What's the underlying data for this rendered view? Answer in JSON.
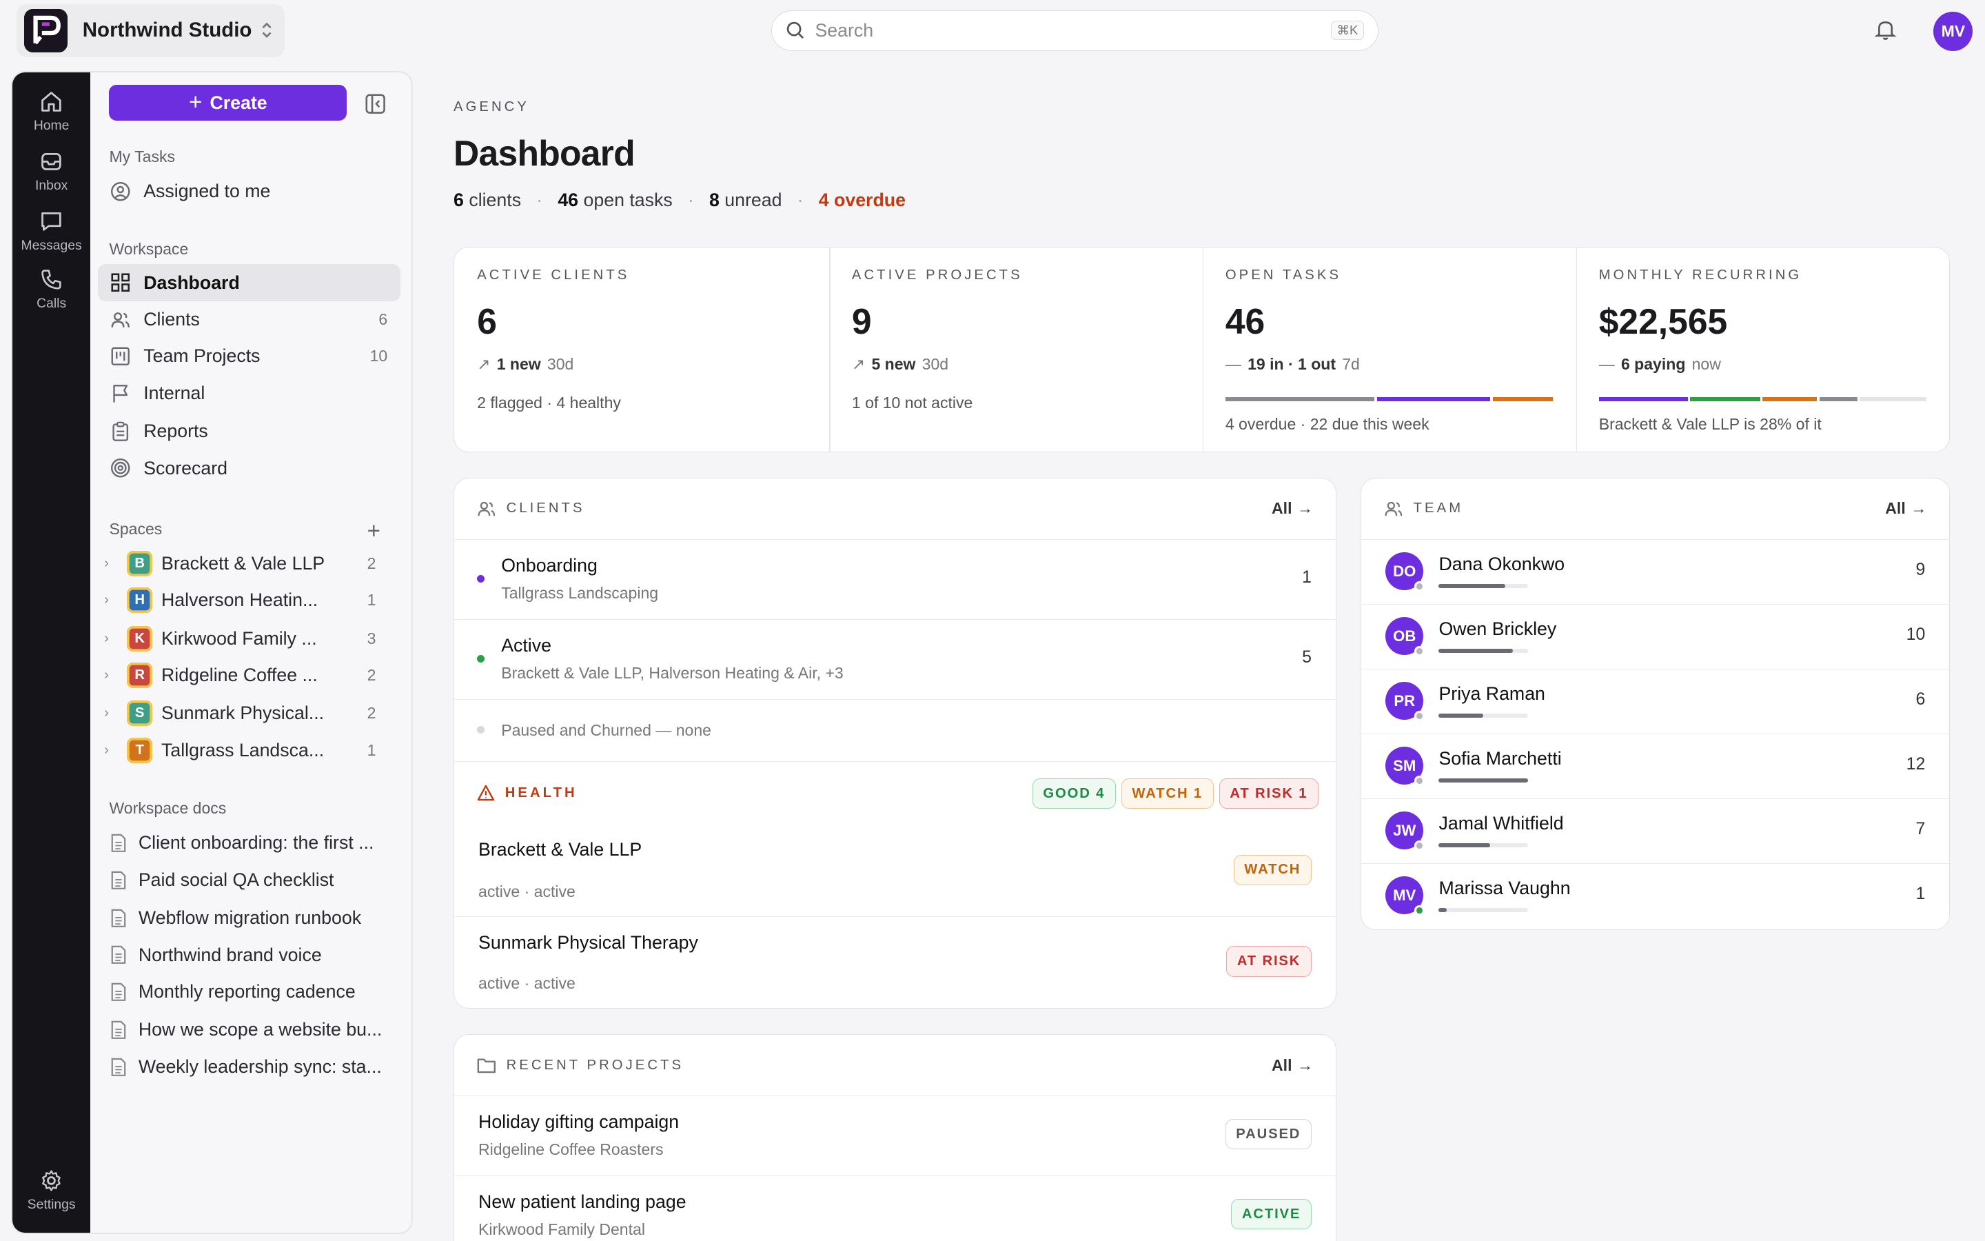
{
  "workspace": {
    "name": "Northwind Studio"
  },
  "search": {
    "placeholder": "Search",
    "shortcut": "⌘K"
  },
  "user": {
    "initials": "MV"
  },
  "rail": {
    "home": "Home",
    "inbox": "Inbox",
    "messages": "Messages",
    "calls": "Calls",
    "settings": "Settings"
  },
  "sidebar": {
    "create_label": "Create",
    "my_tasks_label": "My Tasks",
    "assigned": "Assigned to me",
    "workspace_label": "Workspace",
    "nav": [
      {
        "label": "Dashboard",
        "count": ""
      },
      {
        "label": "Clients",
        "count": "6"
      },
      {
        "label": "Team Projects",
        "count": "10"
      },
      {
        "label": "Internal",
        "count": ""
      },
      {
        "label": "Reports",
        "count": ""
      },
      {
        "label": "Scorecard",
        "count": ""
      }
    ],
    "spaces_label": "Spaces",
    "spaces": [
      {
        "letter": "B",
        "name": "Brackett & Vale LLP",
        "count": "2",
        "color": "#3f9e86"
      },
      {
        "letter": "H",
        "name": "Halverson Heatin...",
        "count": "1",
        "color": "#2f6fb2"
      },
      {
        "letter": "K",
        "name": "Kirkwood Family ...",
        "count": "3",
        "color": "#c9473e"
      },
      {
        "letter": "R",
        "name": "Ridgeline Coffee ...",
        "count": "2",
        "color": "#c9473e"
      },
      {
        "letter": "S",
        "name": "Sunmark Physical...",
        "count": "2",
        "color": "#3f9e86"
      },
      {
        "letter": "T",
        "name": "Tallgrass Landsca...",
        "count": "1",
        "color": "#d1731a"
      }
    ],
    "docs_label": "Workspace docs",
    "docs": [
      "Client onboarding: the first ...",
      "Paid social QA checklist",
      "Webflow migration runbook",
      "Northwind brand voice",
      "Monthly reporting cadence",
      "How we scope a website bu...",
      "Weekly leadership sync: sta..."
    ]
  },
  "page": {
    "eyebrow": "AGENCY",
    "title": "Dashboard",
    "summary": {
      "clients_n": "6",
      "clients_t": "clients",
      "tasks_n": "46",
      "tasks_t": "open tasks",
      "unread_n": "8",
      "unread_t": "unread",
      "overdue": "4 overdue"
    }
  },
  "kpis": [
    {
      "label": "ACTIVE CLIENTS",
      "value": "6",
      "delta_b": "1 new",
      "delta_t": "30d",
      "foot": "2 flagged · 4 healthy"
    },
    {
      "label": "ACTIVE PROJECTS",
      "value": "9",
      "delta_b": "5 new",
      "delta_t": "30d",
      "foot": "1 of 10 not active"
    },
    {
      "label": "OPEN TASKS",
      "value": "46",
      "delta_b": "19 in · 1 out",
      "delta_t": "7d",
      "foot": "4 overdue · 22 due this week"
    },
    {
      "label": "MONTHLY RECURRING",
      "value": "$22,565",
      "delta_b": "6 paying",
      "delta_t": "now",
      "foot": "Brackett & Vale LLP is 28% of it"
    }
  ],
  "kpi_colors": {
    "gray": "#8a8a92",
    "purple": "#6d2ee0",
    "orange": "#d9731a",
    "green": "#2f9e44",
    "light": "#e5e4e8"
  },
  "clients_panel": {
    "title": "CLIENTS",
    "all": "All",
    "groups": [
      {
        "name": "Onboarding",
        "sub": "Tallgrass Landscaping",
        "count": "1",
        "color": "#6d2ee0"
      },
      {
        "name": "Active",
        "sub": "Brackett & Vale LLP, Halverson Heating & Air, +3",
        "count": "5",
        "color": "#2f9e44"
      }
    ],
    "paused": "Paused and Churned — none",
    "health_title": "HEALTH",
    "health_badges": {
      "good": "GOOD 4",
      "watch": "WATCH 1",
      "risk": "AT RISK 1"
    },
    "health_rows": [
      {
        "name": "Brackett & Vale LLP",
        "sub": "active · active",
        "badge": "WATCH"
      },
      {
        "name": "Sunmark Physical Therapy",
        "sub": "active · active",
        "badge": "AT RISK"
      }
    ]
  },
  "team_panel": {
    "title": "TEAM",
    "all": "All",
    "members": [
      {
        "initials": "DO",
        "name": "Dana Okonkwo",
        "count": "9",
        "load": 0.75
      },
      {
        "initials": "OB",
        "name": "Owen Brickley",
        "count": "10",
        "load": 0.83
      },
      {
        "initials": "PR",
        "name": "Priya Raman",
        "count": "6",
        "load": 0.5
      },
      {
        "initials": "SM",
        "name": "Sofia Marchetti",
        "count": "12",
        "load": 1.0
      },
      {
        "initials": "JW",
        "name": "Jamal Whitfield",
        "count": "7",
        "load": 0.58
      },
      {
        "initials": "MV",
        "name": "Marissa Vaughn",
        "count": "1",
        "load": 0.09
      }
    ]
  },
  "projects_panel": {
    "title": "RECENT PROJECTS",
    "all": "All",
    "rows": [
      {
        "name": "Holiday gifting campaign",
        "client": "Ridgeline Coffee Roasters",
        "status": "PAUSED"
      },
      {
        "name": "New patient landing page",
        "client": "Kirkwood Family Dental",
        "status": "ACTIVE"
      }
    ]
  }
}
